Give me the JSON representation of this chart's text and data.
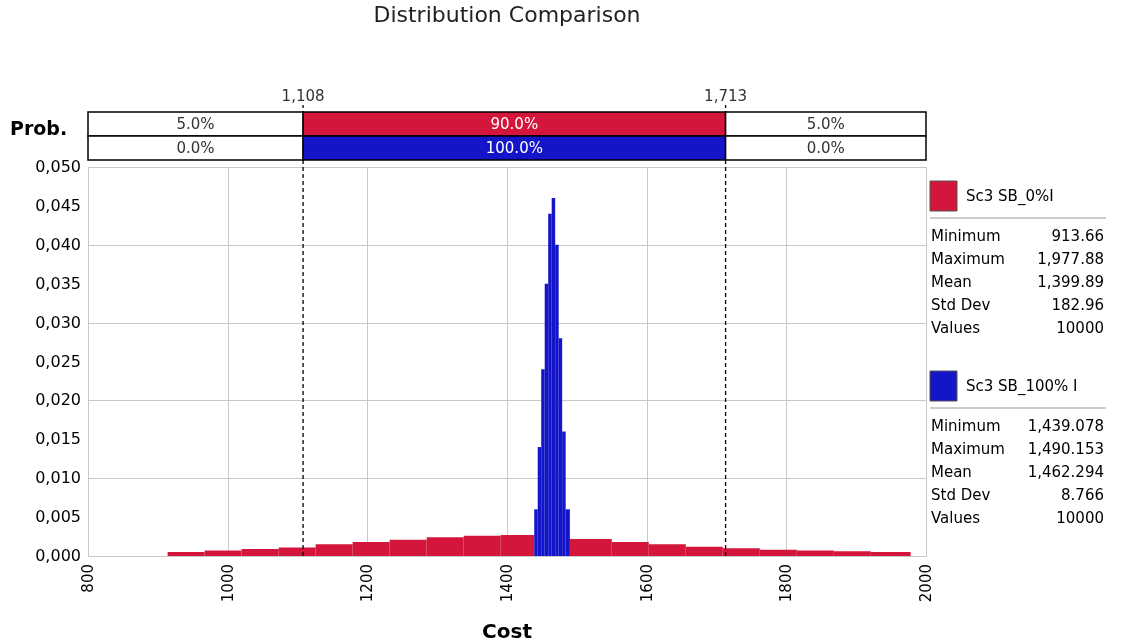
{
  "chart_data": {
    "type": "histogram",
    "title": "Distribution Comparison",
    "xlabel": "Cost",
    "ylabel": "Prob.",
    "xlim": [
      800,
      2000
    ],
    "xticks": [
      800,
      1000,
      1200,
      1400,
      1600,
      1800,
      2000
    ],
    "ylim": [
      0,
      0.05
    ],
    "yticks": [
      {
        "value": 0,
        "label": "0,000"
      },
      {
        "value": 0.005,
        "label": "0,005"
      },
      {
        "value": 0.01,
        "label": "0,010"
      },
      {
        "value": 0.015,
        "label": "0,015"
      },
      {
        "value": 0.02,
        "label": "0,020"
      },
      {
        "value": 0.025,
        "label": "0,025"
      },
      {
        "value": 0.03,
        "label": "0,030"
      },
      {
        "value": 0.035,
        "label": "0,035"
      },
      {
        "value": 0.04,
        "label": "0,040"
      },
      {
        "value": 0.045,
        "label": "0,045"
      },
      {
        "value": 0.05,
        "label": "0,050"
      }
    ],
    "grid": true,
    "legend": "right",
    "bins": [
      914,
      967,
      1020,
      1073,
      1126,
      1179,
      1232,
      1285,
      1338,
      1391,
      1439,
      1444,
      1449,
      1454,
      1459,
      1464,
      1469,
      1474,
      1479,
      1484,
      1490,
      1550,
      1603,
      1656,
      1709,
      1762,
      1815,
      1868,
      1921,
      1978
    ],
    "series": [
      {
        "name": "Sc3 SB_0%I",
        "color": "#d4163c",
        "values": [
          0.0005,
          0.0007,
          0.0009,
          0.0011,
          0.0015,
          0.0018,
          0.0021,
          0.0024,
          0.0026,
          0.0027,
          null,
          null,
          null,
          null,
          null,
          null,
          null,
          null,
          null,
          null,
          0.0022,
          0.0018,
          0.0015,
          0.0012,
          0.001,
          0.0008,
          0.0007,
          0.0006,
          0.0005
        ]
      },
      {
        "name": "Sc3 SB_100% I",
        "color": "#1414c8",
        "values": [
          null,
          null,
          null,
          null,
          null,
          null,
          null,
          null,
          null,
          null,
          0.006,
          0.014,
          0.024,
          0.035,
          0.044,
          0.046,
          0.04,
          0.028,
          0.016,
          0.006,
          null,
          null,
          null,
          null,
          null,
          null,
          null,
          null,
          null
        ]
      }
    ],
    "ref_lines": [
      {
        "axis": "x",
        "value": 1108,
        "label": "1,108",
        "line_style": "dashed"
      },
      {
        "axis": "x",
        "value": 1713,
        "label": "1,713",
        "line_style": "dashed"
      }
    ],
    "annotations": [
      "5.0%",
      "90.0%",
      "5.0%",
      "0.0%",
      "100.0%",
      "0.0%",
      "Minimum",
      "Maximum",
      "Mean",
      "Std Dev",
      "Values",
      "913.66",
      "1,977.88",
      "1,399.89",
      "182.96",
      "10000",
      "Minimum",
      "Maximum",
      "Mean",
      "Std Dev",
      "Values",
      "1,439.078",
      "1,490.153",
      "1,462.294",
      "8.766",
      "10000"
    ]
  }
}
